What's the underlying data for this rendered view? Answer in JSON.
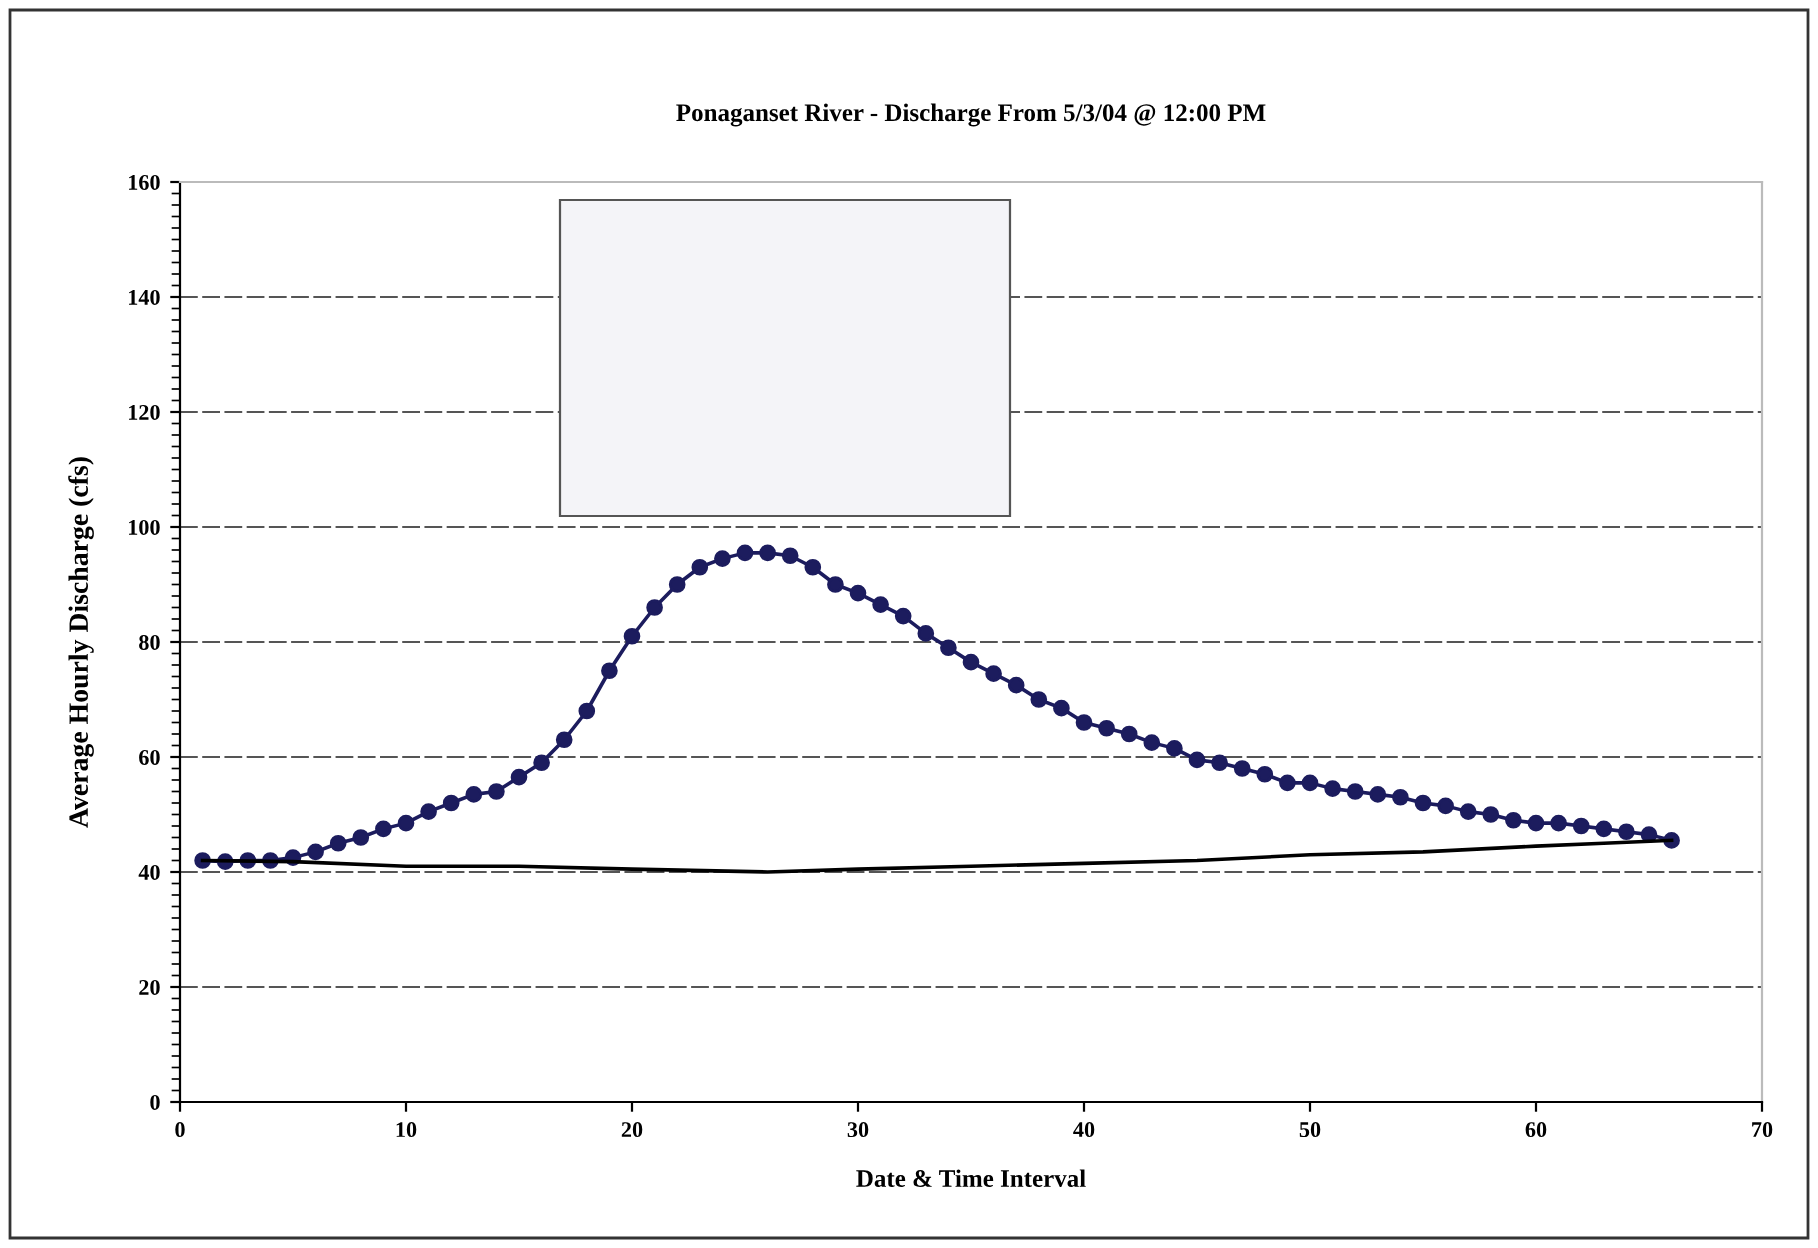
{
  "chart_data": {
    "type": "line",
    "title": "Ponaganset River - Discharge From 5/3/04 @ 12:00 PM",
    "xlabel": "Date & Time Interval",
    "ylabel": "Average Hourly Discharge (cfs)",
    "series": [
      {
        "color": "#1c1c5e",
        "marker": "circle",
        "x": [
          1,
          2,
          3,
          4,
          5,
          6,
          7,
          8,
          9,
          10,
          11,
          12,
          13,
          14,
          15,
          16,
          17,
          18,
          19,
          20,
          21,
          22,
          23,
          24,
          25,
          26,
          27,
          28,
          29,
          30,
          31,
          32,
          33,
          34,
          35,
          36,
          37,
          38,
          39,
          40,
          41,
          42,
          43,
          44,
          45,
          46,
          47,
          48,
          49,
          50,
          51,
          52,
          53,
          54,
          55,
          56,
          57,
          58,
          59,
          60,
          61,
          62,
          63,
          64,
          65,
          66
        ],
        "values": [
          42,
          41.8,
          42,
          42,
          42.5,
          43.5,
          45,
          46,
          47.5,
          48.5,
          50.5,
          52,
          53.5,
          54,
          56.5,
          59,
          63,
          68,
          75,
          81,
          86,
          90,
          93,
          94.5,
          95.5,
          95.5,
          95,
          93,
          90,
          88.5,
          86.5,
          84.5,
          81.5,
          79,
          76.5,
          74.5,
          72.5,
          70,
          68.5,
          66,
          65,
          64,
          62.5,
          61.5,
          59.5,
          59,
          58,
          57,
          55.5,
          55.5,
          54.5,
          54,
          53.5,
          53,
          52,
          51.5,
          50.5,
          50,
          49,
          48.5,
          48.5,
          48,
          47.5,
          47,
          46.5,
          45.5
        ]
      },
      {
        "color": "#000000",
        "marker": "none",
        "x": [
          1,
          5,
          10,
          15,
          20,
          26,
          30,
          35,
          40,
          45,
          50,
          55,
          60,
          63,
          66
        ],
        "values": [
          42,
          41.8,
          41,
          41,
          40.5,
          40,
          40.5,
          41,
          41.5,
          42,
          43,
          43.5,
          44.5,
          45,
          45.5
        ]
      }
    ],
    "xlim": [
      0,
      70
    ],
    "xticks": [
      0,
      10,
      20,
      30,
      40,
      50,
      60,
      70
    ],
    "ylim": [
      0,
      160
    ],
    "yticks": [
      0,
      20,
      40,
      60,
      80,
      100,
      120,
      140,
      160
    ],
    "grid": "y",
    "legend": false
  }
}
